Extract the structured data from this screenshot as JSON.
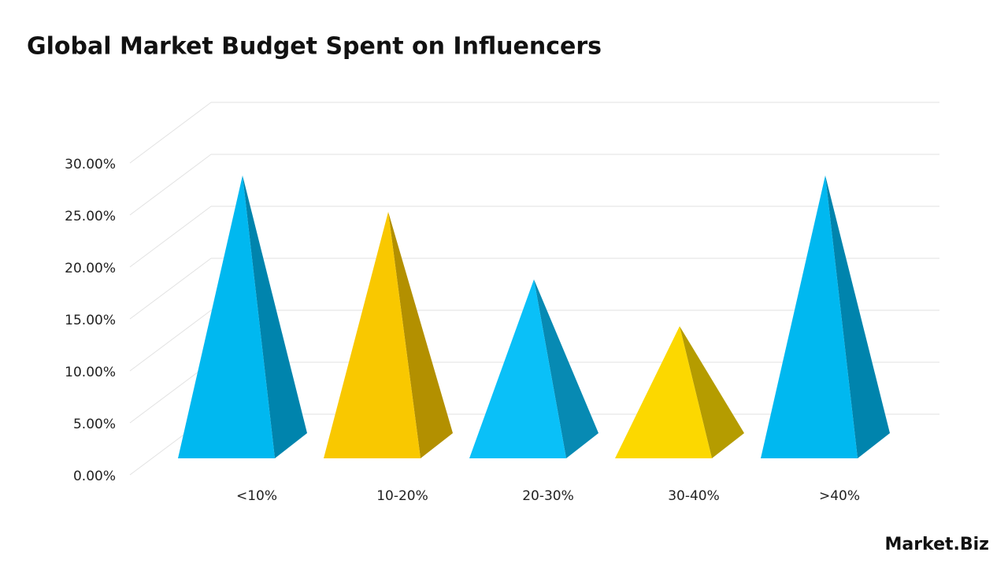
{
  "chart_data": {
    "type": "pyramid",
    "title": "Global Market Budget Spent on Influencers",
    "categories": [
      "<10%",
      "10-20%",
      "20-30%",
      "30-40%",
      ">40%"
    ],
    "values": [
      26,
      22.5,
      16,
      11.5,
      26
    ],
    "colors": [
      "#00b8f0",
      "#f9c800",
      "#0ac0f8",
      "#fcd800",
      "#00b8f0"
    ],
    "ylim": [
      0,
      30
    ],
    "yticks": [
      {
        "value": 0,
        "label": "0.00%"
      },
      {
        "value": 5,
        "label": "5.00%"
      },
      {
        "value": 10,
        "label": "10.00%"
      },
      {
        "value": 15,
        "label": "15.00%"
      },
      {
        "value": 20,
        "label": "20.00%"
      },
      {
        "value": 25,
        "label": "25.00%"
      },
      {
        "value": 30,
        "label": "30.00%"
      }
    ],
    "grid": true
  },
  "logo": "Market.Biz"
}
